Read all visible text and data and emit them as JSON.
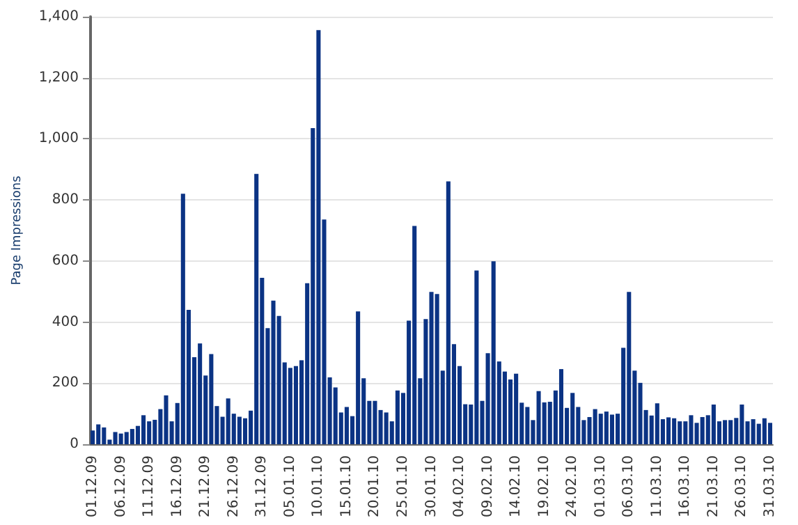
{
  "chart_data": {
    "type": "bar",
    "ylabel": "Page Impressions",
    "categories": [
      "01.12.09",
      null,
      null,
      null,
      null,
      "06.12.09",
      null,
      null,
      null,
      null,
      "11.12.09",
      null,
      null,
      null,
      null,
      "16.12.09",
      null,
      null,
      null,
      null,
      "21.12.09",
      null,
      null,
      null,
      null,
      "26.12.09",
      null,
      null,
      null,
      null,
      "31.12.09",
      null,
      null,
      null,
      null,
      "05.01.10",
      null,
      null,
      null,
      null,
      "10.01.10",
      null,
      null,
      null,
      null,
      "15.01.10",
      null,
      null,
      null,
      null,
      "20.01.10",
      null,
      null,
      null,
      null,
      "25.01.10",
      null,
      null,
      null,
      null,
      "30.01.10",
      null,
      null,
      null,
      null,
      "04.02.10",
      null,
      null,
      null,
      null,
      "09.02.10",
      null,
      null,
      null,
      null,
      "14.02.10",
      null,
      null,
      null,
      null,
      "19.02.10",
      null,
      null,
      null,
      null,
      "24.02.10",
      null,
      null,
      null,
      null,
      "01.03.10",
      null,
      null,
      null,
      null,
      "06.03.10",
      null,
      null,
      null,
      null,
      "11.03.10",
      null,
      null,
      null,
      null,
      "16.03.10",
      null,
      null,
      null,
      null,
      "21.03.10",
      null,
      null,
      null,
      null,
      "26.03.10",
      null,
      null,
      null,
      null,
      "31.03.10"
    ],
    "values": [
      45,
      65,
      55,
      15,
      40,
      35,
      40,
      50,
      60,
      95,
      75,
      80,
      115,
      160,
      75,
      135,
      820,
      440,
      285,
      330,
      225,
      295,
      125,
      90,
      150,
      100,
      90,
      85,
      110,
      885,
      545,
      380,
      470,
      420,
      268,
      250,
      256,
      275,
      527,
      1035,
      1356,
      736,
      219,
      186,
      104,
      122,
      92,
      435,
      216,
      142,
      142,
      112,
      104,
      75,
      176,
      168,
      405,
      715,
      216,
      410,
      499,
      492,
      241,
      861,
      328,
      256,
      131,
      130,
      569,
      142,
      298,
      599,
      271,
      238,
      212,
      231,
      136,
      122,
      79,
      174,
      137,
      139,
      176,
      246,
      119,
      168,
      122,
      79,
      89,
      115,
      100,
      107,
      97,
      100,
      316,
      499,
      241,
      201,
      112,
      94,
      134,
      82,
      88,
      85,
      75,
      75,
      95,
      70,
      89,
      95,
      130,
      75,
      79,
      79,
      86,
      130,
      75,
      82,
      67,
      85,
      70
    ],
    "color": "#0b3384",
    "ylim": [
      0,
      1400
    ],
    "yticks": [
      0,
      200,
      400,
      600,
      800,
      {
        "value": 1000,
        "label": "1,000"
      },
      {
        "value": 1200,
        "label": "1,200"
      },
      {
        "value": 1400,
        "label": "1,400"
      }
    ],
    "grid": "y"
  }
}
